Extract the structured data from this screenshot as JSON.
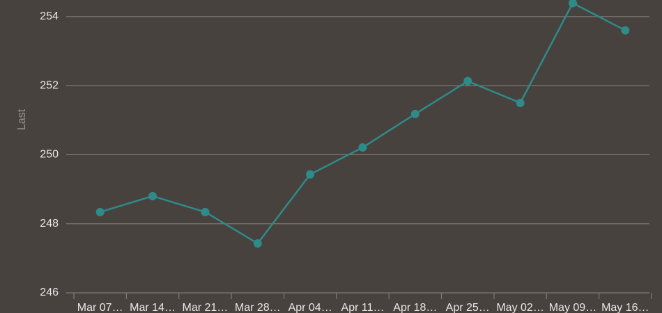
{
  "chart_data": {
    "type": "line",
    "y_label": "Last",
    "categories": [
      "Mar 07…",
      "Mar 14…",
      "Mar 21…",
      "Mar 28…",
      "Apr 04…",
      "Apr 11…",
      "Apr 18…",
      "Apr 25…",
      "May 02…",
      "May 09…",
      "May 16…"
    ],
    "values": [
      248.34,
      248.8,
      248.34,
      247.43,
      249.43,
      250.21,
      251.18,
      252.13,
      251.5,
      254.39,
      253.6
    ],
    "color": "#2e8b8a",
    "ylim": [
      246,
      254.48
    ],
    "yticks": [
      246,
      248,
      250,
      252,
      254
    ],
    "grid": true
  }
}
